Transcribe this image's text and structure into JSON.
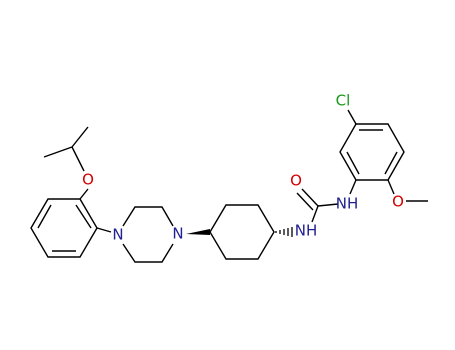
{
  "atoms": [
    {
      "label": "Cl"
    },
    {
      "label": "O"
    },
    {
      "label": "NH"
    },
    {
      "label": "O"
    },
    {
      "label": "O"
    },
    {
      "label": "N"
    },
    {
      "label": "N"
    },
    {
      "label": "NH"
    }
  ]
}
